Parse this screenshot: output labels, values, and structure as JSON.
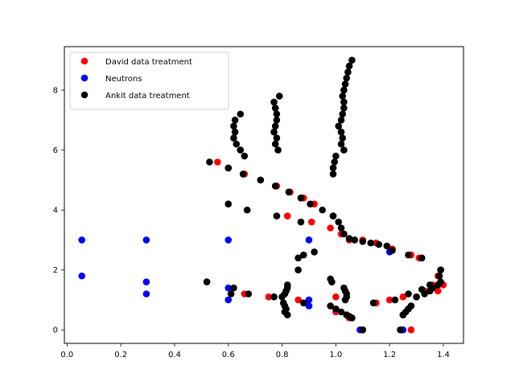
{
  "chart_data": {
    "type": "scatter",
    "title": "",
    "xlabel": "",
    "ylabel": "",
    "xlim": [
      -0.01,
      1.475
    ],
    "ylim": [
      -0.45,
      9.45
    ],
    "x_ticks": [
      0.0,
      0.2,
      0.4,
      0.6,
      0.8,
      1.0,
      1.2,
      1.4
    ],
    "x_tick_labels": [
      "0.0",
      "0.2",
      "0.4",
      "0.6",
      "0.8",
      "1.0",
      "1.2",
      "1.4"
    ],
    "y_ticks": [
      0,
      2,
      4,
      6,
      8
    ],
    "y_tick_labels": [
      "0",
      "2",
      "4",
      "6",
      "8"
    ],
    "grid": false,
    "legend_position": "upper-left",
    "series": [
      {
        "name": "David data treatment",
        "color": "#ff0000",
        "points": [
          [
            0.56,
            5.6
          ],
          [
            0.6,
            5.4
          ],
          [
            0.66,
            5.2
          ],
          [
            0.72,
            5.0
          ],
          [
            0.78,
            4.8
          ],
          [
            0.83,
            4.6
          ],
          [
            0.88,
            4.4
          ],
          [
            0.92,
            4.2
          ],
          [
            0.82,
            3.8
          ],
          [
            0.91,
            3.6
          ],
          [
            0.99,
            3.8
          ],
          [
            0.98,
            3.4
          ],
          [
            1.02,
            3.2
          ],
          [
            1.05,
            3.0
          ],
          [
            1.1,
            3.0
          ],
          [
            1.15,
            2.9
          ],
          [
            1.21,
            2.7
          ],
          [
            1.28,
            2.5
          ],
          [
            1.31,
            2.4
          ],
          [
            1.33,
            1.3
          ],
          [
            1.36,
            1.5
          ],
          [
            1.38,
            1.8
          ],
          [
            1.39,
            2.0
          ],
          [
            1.4,
            1.5
          ],
          [
            1.38,
            1.3
          ],
          [
            1.3,
            1.1
          ],
          [
            1.25,
            1.1
          ],
          [
            1.2,
            1.0
          ],
          [
            1.15,
            0.9
          ],
          [
            1.28,
            0.0
          ],
          [
            1.25,
            0.5
          ],
          [
            1.27,
            0.7
          ],
          [
            1.05,
            0.4
          ],
          [
            1.0,
            0.6
          ],
          [
            1.0,
            1.1
          ],
          [
            1.1,
            0.0
          ],
          [
            0.66,
            1.2
          ],
          [
            0.75,
            1.1
          ],
          [
            0.86,
            1.0
          ]
        ]
      },
      {
        "name": "Neutrons",
        "color": "#0000ff",
        "points": [
          [
            0.055,
            3.0
          ],
          [
            0.055,
            1.8
          ],
          [
            0.295,
            3.0
          ],
          [
            0.295,
            1.6
          ],
          [
            0.295,
            1.2
          ],
          [
            0.6,
            3.0
          ],
          [
            0.6,
            1.4
          ],
          [
            0.6,
            1.0
          ],
          [
            0.9,
            3.0
          ],
          [
            0.9,
            1.0
          ],
          [
            0.9,
            0.8
          ],
          [
            1.2,
            2.6
          ],
          [
            1.09,
            0.0
          ],
          [
            1.25,
            0.0
          ]
        ]
      },
      {
        "name": "Ankit data treatment",
        "color": "#000000",
        "points": [
          [
            1.06,
            9.0
          ],
          [
            1.05,
            8.8
          ],
          [
            1.045,
            8.6
          ],
          [
            1.04,
            8.4
          ],
          [
            1.035,
            8.2
          ],
          [
            1.03,
            8.0
          ],
          [
            1.025,
            7.8
          ],
          [
            1.03,
            7.6
          ],
          [
            1.03,
            7.4
          ],
          [
            1.025,
            7.2
          ],
          [
            1.02,
            7.0
          ],
          [
            1.01,
            6.8
          ],
          [
            1.02,
            6.6
          ],
          [
            1.025,
            6.4
          ],
          [
            1.02,
            6.2
          ],
          [
            1.03,
            6.0
          ],
          [
            1.0,
            5.8
          ],
          [
            0.995,
            5.6
          ],
          [
            0.99,
            5.4
          ],
          [
            0.99,
            5.2
          ],
          [
            0.79,
            7.8
          ],
          [
            0.77,
            7.6
          ],
          [
            0.775,
            7.4
          ],
          [
            0.78,
            7.2
          ],
          [
            0.78,
            7.0
          ],
          [
            0.775,
            6.8
          ],
          [
            0.77,
            6.6
          ],
          [
            0.78,
            6.4
          ],
          [
            0.775,
            6.2
          ],
          [
            0.785,
            6.0
          ],
          [
            0.645,
            7.2
          ],
          [
            0.625,
            7.0
          ],
          [
            0.62,
            6.8
          ],
          [
            0.625,
            6.6
          ],
          [
            0.62,
            6.4
          ],
          [
            0.63,
            6.2
          ],
          [
            0.645,
            6.0
          ],
          [
            0.66,
            5.8
          ],
          [
            0.53,
            5.6
          ],
          [
            0.6,
            5.4
          ],
          [
            0.655,
            5.2
          ],
          [
            0.72,
            5.0
          ],
          [
            0.775,
            4.8
          ],
          [
            0.825,
            4.6
          ],
          [
            0.87,
            4.4
          ],
          [
            0.905,
            4.2
          ],
          [
            0.95,
            4.0
          ],
          [
            0.99,
            3.8
          ],
          [
            1.01,
            3.6
          ],
          [
            1.02,
            3.4
          ],
          [
            1.03,
            3.2
          ],
          [
            1.05,
            3.05
          ],
          [
            1.07,
            3.0
          ],
          [
            1.1,
            2.95
          ],
          [
            1.13,
            2.9
          ],
          [
            1.16,
            2.85
          ],
          [
            1.19,
            2.8
          ],
          [
            1.21,
            2.65
          ],
          [
            1.27,
            2.5
          ],
          [
            1.32,
            2.4
          ],
          [
            0.6,
            4.2
          ],
          [
            0.67,
            4.0
          ],
          [
            0.78,
            3.8
          ],
          [
            0.87,
            3.6
          ],
          [
            0.86,
            2.4
          ],
          [
            0.88,
            2.5
          ],
          [
            0.92,
            2.6
          ],
          [
            0.86,
            2.0
          ],
          [
            1.39,
            2.0
          ],
          [
            1.385,
            1.8
          ],
          [
            1.39,
            1.6
          ],
          [
            1.38,
            1.5
          ],
          [
            1.36,
            1.4
          ],
          [
            1.35,
            1.3
          ],
          [
            1.33,
            1.2
          ],
          [
            1.3,
            1.1
          ],
          [
            1.35,
            1.5
          ],
          [
            1.32,
            1.35
          ],
          [
            1.28,
            0.8
          ],
          [
            1.27,
            0.7
          ],
          [
            1.26,
            0.6
          ],
          [
            1.25,
            0.5
          ],
          [
            1.24,
            0.0
          ],
          [
            1.27,
            1.2
          ],
          [
            1.22,
            1.0
          ],
          [
            1.14,
            0.9
          ],
          [
            0.52,
            1.6
          ],
          [
            0.62,
            1.4
          ],
          [
            0.61,
            1.2
          ],
          [
            0.675,
            1.2
          ],
          [
            0.77,
            1.1
          ],
          [
            0.82,
            1.5
          ],
          [
            0.82,
            1.4
          ],
          [
            0.815,
            1.3
          ],
          [
            0.81,
            1.2
          ],
          [
            0.8,
            1.1
          ],
          [
            0.805,
            0.9
          ],
          [
            0.81,
            0.8
          ],
          [
            0.815,
            0.7
          ],
          [
            0.81,
            0.6
          ],
          [
            0.82,
            0.5
          ],
          [
            0.88,
            0.9
          ],
          [
            0.98,
            1.7
          ],
          [
            0.985,
            1.6
          ],
          [
            0.98,
            0.8
          ],
          [
            1.0,
            0.7
          ],
          [
            1.02,
            0.6
          ],
          [
            1.04,
            0.5
          ],
          [
            1.05,
            0.45
          ],
          [
            1.06,
            0.4
          ],
          [
            1.03,
            1.4
          ],
          [
            1.035,
            1.3
          ],
          [
            1.04,
            1.2
          ],
          [
            1.04,
            1.1
          ],
          [
            1.035,
            1.0
          ],
          [
            1.1,
            0.0
          ]
        ]
      }
    ]
  }
}
